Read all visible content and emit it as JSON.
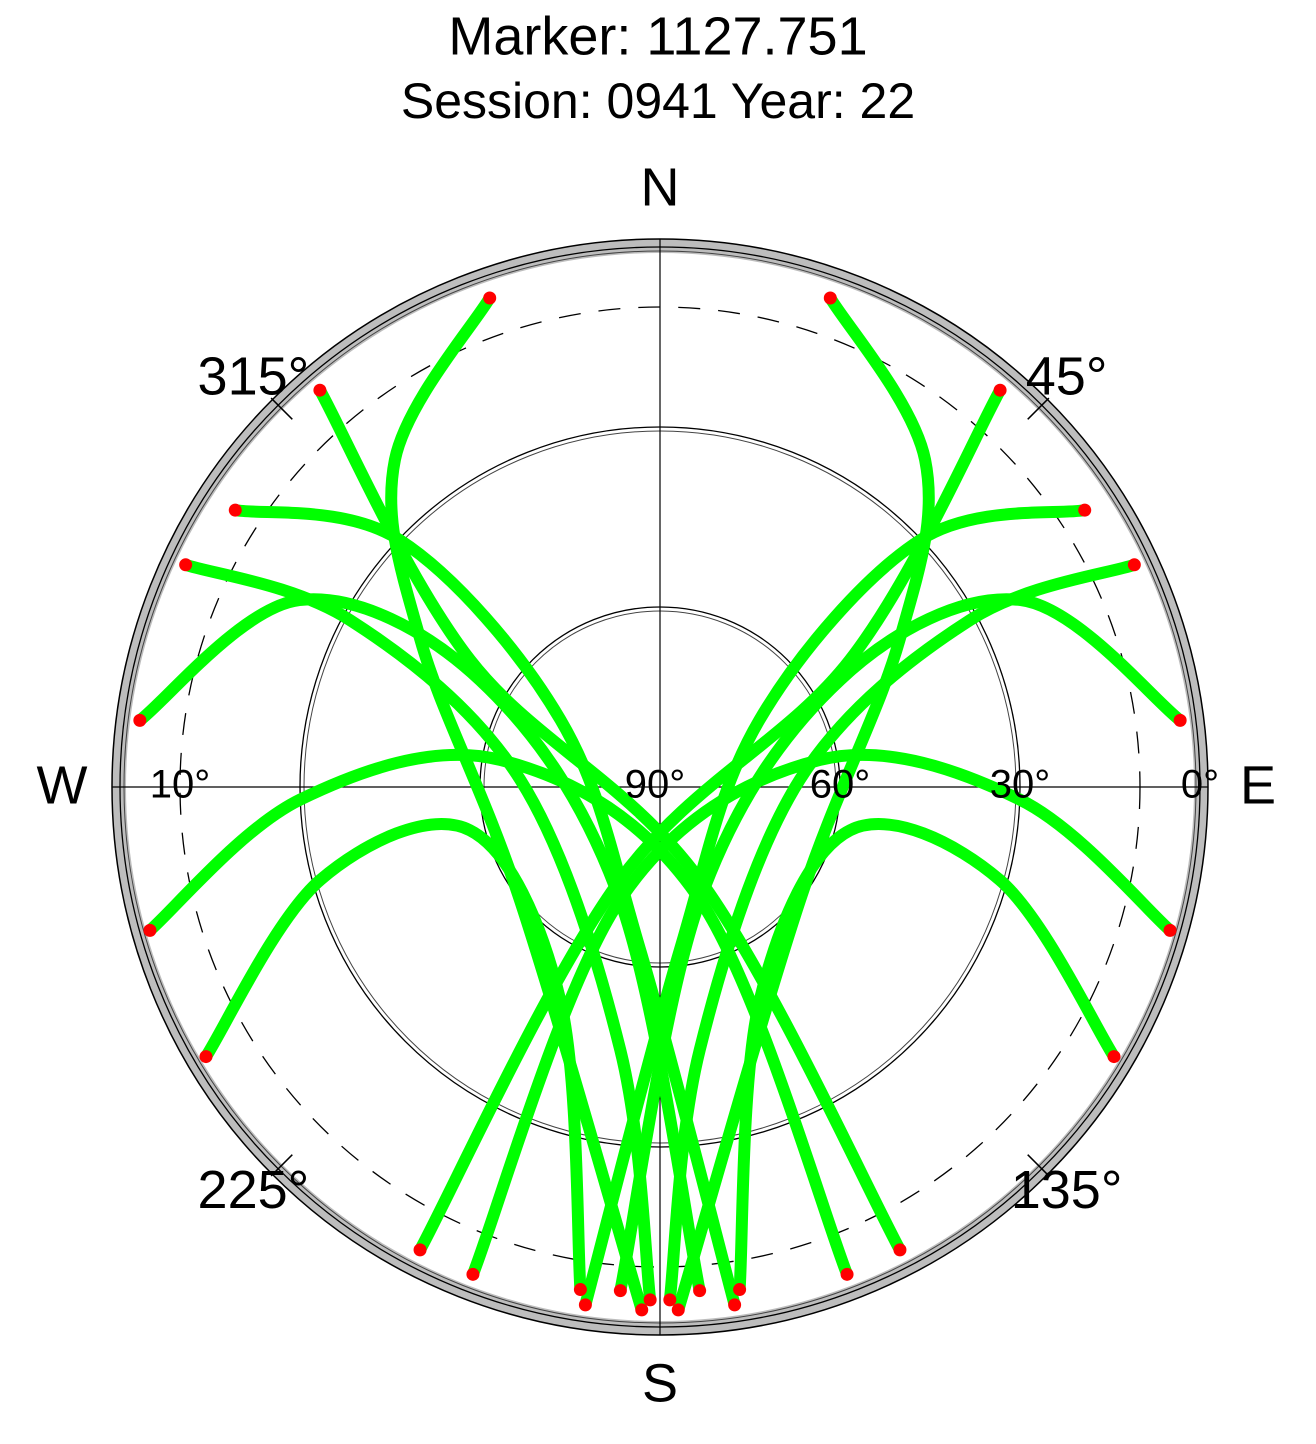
{
  "chart_data": {
    "type": "skyplot",
    "title": "Marker: 1127.751",
    "subtitle": "Session: 0941 Year: 22",
    "color": "#00ff00",
    "low_color": "#ff0000",
    "elevation_ticks": [
      {
        "value": 90,
        "label": "90°"
      },
      {
        "value": 60,
        "label": "60°"
      },
      {
        "value": 30,
        "label": "30°"
      },
      {
        "value": 0,
        "label": "0°"
      }
    ],
    "elevation_mask": {
      "value": 10,
      "label": "10°"
    },
    "azimuth_ticks": [
      {
        "value": 45,
        "label": "45°"
      },
      {
        "value": 135,
        "label": "135°"
      },
      {
        "value": 225,
        "label": "225°"
      },
      {
        "value": 315,
        "label": "315°"
      }
    ],
    "cardinal_labels": [
      {
        "value": 0,
        "label": "N"
      },
      {
        "value": 90,
        "label": "E"
      },
      {
        "value": 180,
        "label": "S"
      },
      {
        "value": 270,
        "label": "W"
      }
    ],
    "tracks": [
      {
        "azimuth": [
          340.8,
          321,
          301.5,
          231.1,
          182
        ],
        "elevation": [
          3.7,
          19.8,
          43.2,
          60,
          2.8
        ]
      },
      {
        "azimuth": [
          19.2,
          39,
          58.5,
          128.9,
          178
        ],
        "elevation": [
          3.7,
          19.8,
          43.2,
          60,
          2.8
        ]
      },
      {
        "azimuth": [
          277.3,
          297.4,
          300.7,
          199.5,
          175.5
        ],
        "elevation": [
          2.6,
          22.3,
          55.1,
          70,
          5.8
        ]
      },
      {
        "azimuth": [
          82.7,
          62.6,
          59.3,
          160.5,
          184.5
        ],
        "elevation": [
          2.6,
          22.3,
          55.1,
          70,
          5.8
        ]
      },
      {
        "azimuth": [
          303.1,
          313.5,
          304,
          187,
          171.8
        ],
        "elevation": [
          5.5,
          30.2,
          70,
          62.7,
          2.8
        ]
      },
      {
        "azimuth": [
          56.9,
          46.5,
          56,
          173,
          188.2
        ],
        "elevation": [
          5.5,
          30.2,
          70,
          62.7,
          2.8
        ]
      },
      {
        "azimuth": [
          254.3,
          268,
          279.6,
          160.5,
          159
        ],
        "elevation": [
          1.7,
          30,
          63,
          70,
          3
        ]
      },
      {
        "azimuth": [
          105.7,
          92,
          80.4,
          199.5,
          201
        ],
        "elevation": [
          1.7,
          30,
          63,
          70,
          3
        ]
      },
      {
        "azimuth": [
          319.4,
          303.8,
          156.7,
          152.6
        ],
        "elevation": [
          2.9,
          51.9,
          73.1,
          3.1
        ]
      },
      {
        "azimuth": [
          40.6,
          56.2,
          203.3,
          207.4
        ],
        "elevation": [
          2.9,
          51.9,
          73.1,
          3.1
        ]
      },
      {
        "azimuth": [
          239.3,
          254.7,
          257.2,
          205.1,
          189
        ],
        "elevation": [
          2,
          31.3,
          57.5,
          50.8,
          5.2
        ]
      },
      {
        "azimuth": [
          120.7,
          105.3,
          102.8,
          154.9,
          171
        ],
        "elevation": [
          2,
          31.3,
          57.5,
          50.8,
          5.2
        ]
      },
      {
        "azimuth": [
          295.1,
          298.3,
          272.9,
          188.6,
          181.1
        ],
        "elevation": [
          2.7,
          31.3,
          66.7,
          45.7,
          4.5
        ]
      },
      {
        "azimuth": [
          64.9,
          61.7,
          87.1,
          171.4,
          178.9
        ],
        "elevation": [
          2.7,
          31.3,
          66.7,
          45.7,
          4.5
        ]
      }
    ]
  }
}
